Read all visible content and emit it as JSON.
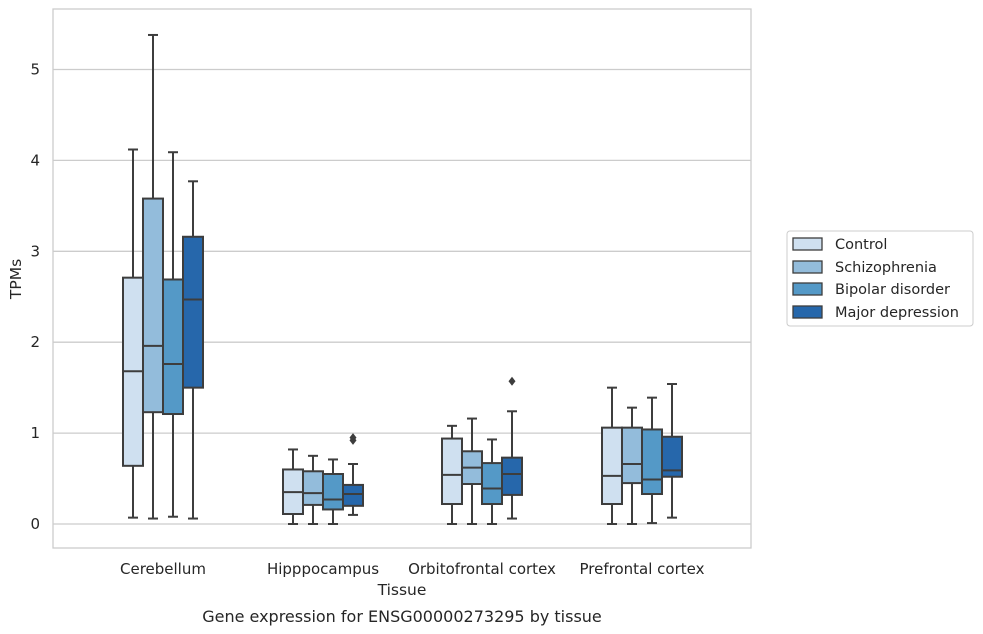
{
  "caption": "Gene expression for ENSG00000273295 by tissue",
  "chart_data": {
    "type": "box",
    "xlabel": "Tissue",
    "ylabel": "TPMs",
    "ylim": [
      -0.25,
      5.65
    ],
    "yticks": [
      0,
      1,
      2,
      3,
      4,
      5
    ],
    "grid": "horizontal",
    "legend_position": "right",
    "categories": [
      "Cerebellum",
      "Hipppocampus",
      "Orbitofrontal cortex",
      "Prefrontal cortex"
    ],
    "series": [
      {
        "name": "Control",
        "color": "#cfe0f0",
        "boxes": [
          {
            "whislo": 0.07,
            "q1": 0.64,
            "med": 1.68,
            "q3": 2.71,
            "whishi": 4.12,
            "fliers": []
          },
          {
            "whislo": 0.0,
            "q1": 0.11,
            "med": 0.35,
            "q3": 0.6,
            "whishi": 0.82,
            "fliers": []
          },
          {
            "whislo": 0.0,
            "q1": 0.22,
            "med": 0.54,
            "q3": 0.94,
            "whishi": 1.08,
            "fliers": []
          },
          {
            "whislo": 0.0,
            "q1": 0.22,
            "med": 0.53,
            "q3": 1.06,
            "whishi": 1.5,
            "fliers": []
          }
        ]
      },
      {
        "name": "Schizophrenia",
        "color": "#93bcdb",
        "boxes": [
          {
            "whislo": 0.06,
            "q1": 1.23,
            "med": 1.96,
            "q3": 3.58,
            "whishi": 5.38,
            "fliers": []
          },
          {
            "whislo": 0.0,
            "q1": 0.21,
            "med": 0.34,
            "q3": 0.58,
            "whishi": 0.75,
            "fliers": []
          },
          {
            "whislo": 0.0,
            "q1": 0.44,
            "med": 0.62,
            "q3": 0.8,
            "whishi": 1.16,
            "fliers": []
          },
          {
            "whislo": 0.0,
            "q1": 0.45,
            "med": 0.66,
            "q3": 1.06,
            "whishi": 1.28,
            "fliers": []
          }
        ]
      },
      {
        "name": "Bipolar disorder",
        "color": "#5499c7",
        "boxes": [
          {
            "whislo": 0.08,
            "q1": 1.21,
            "med": 1.76,
            "q3": 2.69,
            "whishi": 4.09,
            "fliers": []
          },
          {
            "whislo": 0.0,
            "q1": 0.16,
            "med": 0.27,
            "q3": 0.55,
            "whishi": 0.71,
            "fliers": []
          },
          {
            "whislo": 0.0,
            "q1": 0.22,
            "med": 0.39,
            "q3": 0.67,
            "whishi": 0.93,
            "fliers": []
          },
          {
            "whislo": 0.01,
            "q1": 0.33,
            "med": 0.49,
            "q3": 1.04,
            "whishi": 1.39,
            "fliers": []
          }
        ]
      },
      {
        "name": "Major depression",
        "color": "#2667ab",
        "boxes": [
          {
            "whislo": 0.06,
            "q1": 1.5,
            "med": 2.47,
            "q3": 3.16,
            "whishi": 3.77,
            "fliers": []
          },
          {
            "whislo": 0.1,
            "q1": 0.2,
            "med": 0.33,
            "q3": 0.43,
            "whishi": 0.66,
            "fliers": [
              0.92,
              0.95
            ]
          },
          {
            "whislo": 0.06,
            "q1": 0.32,
            "med": 0.55,
            "q3": 0.73,
            "whishi": 1.24,
            "fliers": [
              1.57
            ]
          },
          {
            "whislo": 0.07,
            "q1": 0.52,
            "med": 0.59,
            "q3": 0.96,
            "whishi": 1.54,
            "fliers": []
          }
        ]
      }
    ]
  }
}
